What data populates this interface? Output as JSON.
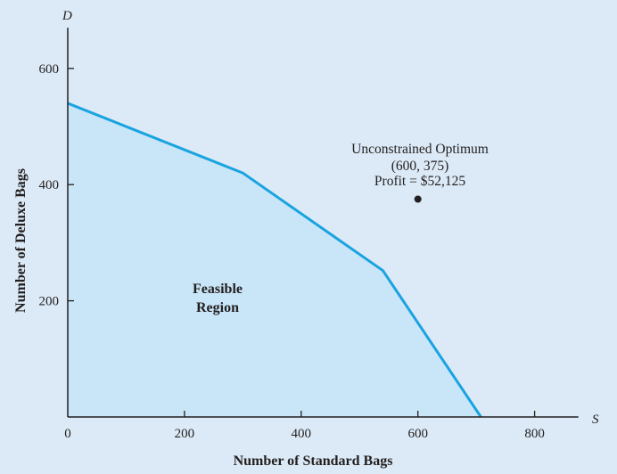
{
  "chart_data": {
    "type": "area",
    "x_axis": {
      "letter": "S",
      "title": "Number of Standard Bags",
      "ticks": [
        0,
        200,
        400,
        600,
        800
      ],
      "range": [
        0,
        875
      ]
    },
    "y_axis": {
      "letter": "D",
      "title": "Number of Deluxe Bags",
      "ticks": [
        200,
        400,
        600
      ],
      "range": [
        0,
        670
      ]
    },
    "feasible_region": {
      "label_line1": "Feasible",
      "label_line2": "Region",
      "fill_color": "#c8e6f8",
      "boundary_color": "#1aa3e0",
      "boundary": [
        [
          0,
          540
        ],
        [
          300,
          420
        ],
        [
          540,
          252
        ],
        [
          708,
          0
        ]
      ]
    },
    "optimum": {
      "point": [
        600,
        375
      ],
      "label_line1": "Unconstrained Optimum",
      "label_line2": "(600, 375)",
      "label_line3": "Profit = $52,125"
    },
    "grid": false,
    "legend": "none"
  }
}
